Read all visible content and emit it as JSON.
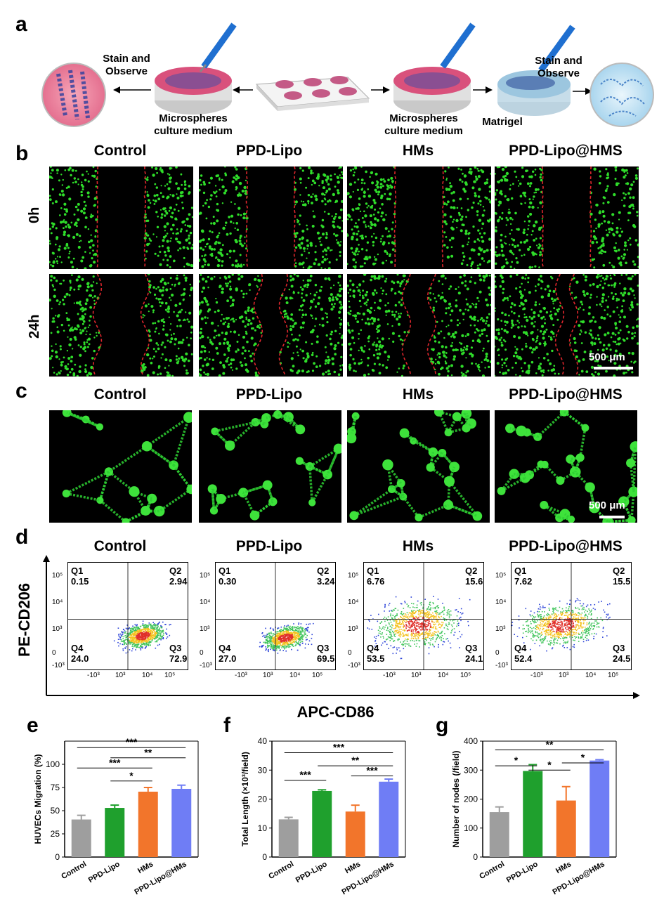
{
  "panel_labels": [
    "a",
    "b",
    "c",
    "d",
    "e",
    "f",
    "g"
  ],
  "panel_a": {
    "stain_left": "Stain and\nObserve",
    "stain_right": "Stain and\nObserve",
    "micro_left": "Microspheres\nculture medium",
    "micro_right": "Microspheres\nculture medium",
    "matrigel": "Matrigel"
  },
  "groups": [
    "Control",
    "PPD-Lipo",
    "HMs",
    "PPD-Lipo@HMS"
  ],
  "panel_b": {
    "rows": [
      "0h",
      "24h"
    ],
    "scale": "500 μm"
  },
  "panel_c": {
    "scale": "500 μm"
  },
  "panel_d": {
    "ylabel": "PE-CD206",
    "xlabel": "APC-CD86",
    "x_ticks": [
      "-10³",
      "10³",
      "10⁴",
      "10⁵"
    ],
    "y_ticks": [
      "10⁵",
      "10⁴",
      "10³",
      "0",
      "-10³"
    ],
    "quadrant_names": [
      "Q1",
      "Q2",
      "Q3",
      "Q4"
    ],
    "plots": [
      {
        "Q1": "0.15",
        "Q2": "2.94",
        "Q3": "72.9",
        "Q4": "24.0"
      },
      {
        "Q1": "0.30",
        "Q2": "3.24",
        "Q3": "69.5",
        "Q4": "27.0"
      },
      {
        "Q1": "6.76",
        "Q2": "15.6",
        "Q3": "24.1",
        "Q4": "53.5"
      },
      {
        "Q1": "7.62",
        "Q2": "15.5",
        "Q3": "24.5",
        "Q4": "52.4"
      }
    ]
  },
  "colors": {
    "gray": "#9e9e9e",
    "green": "#1fa02d",
    "orange": "#f2752b",
    "blue": "#6f7df5",
    "cells": "#2fdc2a",
    "edge": "#e0262d"
  },
  "chart_data": [
    {
      "type": "bar",
      "categories": [
        "Control",
        "PPD-Lipo",
        "HMs",
        "PPD-Lipo@HMs"
      ],
      "values": [
        40.5,
        53,
        70.5,
        73.5
      ],
      "errors": [
        4.5,
        3,
        4.5,
        4
      ],
      "ylabel": "HUVECs Migration (%)",
      "ylim": [
        0,
        125
      ],
      "yticks": [
        "0",
        "25",
        "50",
        "75",
        "100"
      ],
      "sig": [
        "***",
        "**",
        "***",
        "*"
      ]
    },
    {
      "type": "bar",
      "categories": [
        "Control",
        "PPD-Lipo",
        "HMs",
        "PPD-Lipo@HMs"
      ],
      "values": [
        13,
        22.8,
        15.7,
        26
      ],
      "errors": [
        0.7,
        0.4,
        2.2,
        0.9
      ],
      "ylabel": "Total  Length (×10³/field)",
      "ylim": [
        0,
        40
      ],
      "yticks": [
        "0",
        "10",
        "20",
        "30",
        "40"
      ],
      "sig": [
        "***",
        "**",
        "***",
        "***"
      ]
    },
    {
      "type": "bar",
      "categories": [
        "Control",
        "PPD-Lipo",
        "HMs",
        "PPD-Lipo@HMs"
      ],
      "values": [
        155,
        297,
        195,
        333
      ],
      "errors": [
        18,
        22,
        48,
        3
      ],
      "ylabel": "Number of nodes (/field)",
      "ylim": [
        0,
        400
      ],
      "yticks": [
        "0",
        "100",
        "200",
        "300",
        "400"
      ],
      "sig": [
        "**",
        "*",
        "*",
        "*"
      ]
    }
  ]
}
